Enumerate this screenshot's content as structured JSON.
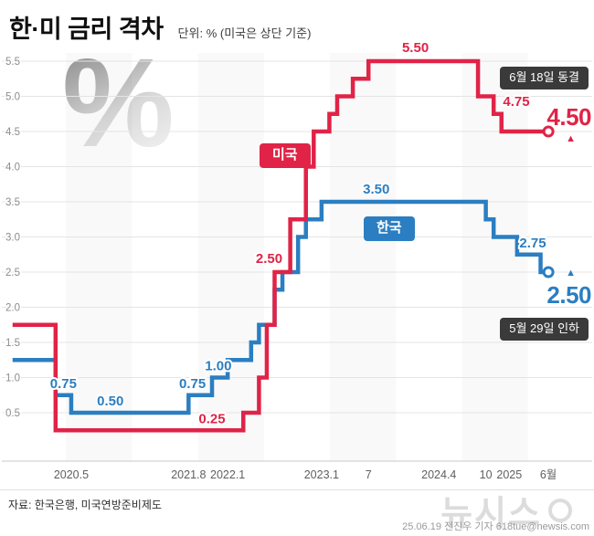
{
  "header": {
    "title": "한·미 금리 격차",
    "subtitle": "단위: % (미국은 상단 기준)"
  },
  "watermark": {
    "percent": "%",
    "brand": "뉴시스"
  },
  "icons": {
    "arrow_up": "▲"
  },
  "colors": {
    "us": "#e02347",
    "korea": "#2b7ec1",
    "event_badge_bg": "#3a3a3a",
    "grid": "#e4e4e4",
    "axis_label": "#8c8c8c"
  },
  "chart_data": {
    "type": "line",
    "step": true,
    "title": "한·미 금리 격차",
    "unit": "%",
    "note": "미국은 상단 기준",
    "ylim": [
      0.25,
      5.5
    ],
    "yticks": [
      5.5,
      5.0,
      4.5,
      4.0,
      3.5,
      3.0,
      2.5,
      2.0,
      1.5,
      1.0,
      0.5
    ],
    "x_unit": "months since 2020-01",
    "xticks": [
      {
        "t": 4,
        "label": "2020.5"
      },
      {
        "t": 19,
        "label": "2021.8"
      },
      {
        "t": 24,
        "label": "2022.1"
      },
      {
        "t": 36,
        "label": "2023.1"
      },
      {
        "t": 42,
        "label": "7"
      },
      {
        "t": 51,
        "label": "2024.4"
      },
      {
        "t": 57,
        "label": "10"
      },
      {
        "t": 60,
        "label": "2025"
      },
      {
        "t": 65,
        "label": "6월"
      }
    ],
    "series": [
      {
        "id": "korea",
        "name": "한국",
        "color": "#2b7ec1",
        "points": [
          [
            -3.5,
            1.25
          ],
          [
            2,
            0.75
          ],
          [
            4,
            0.5
          ],
          [
            19,
            0.75
          ],
          [
            22,
            1.0
          ],
          [
            24,
            1.25
          ],
          [
            27,
            1.5
          ],
          [
            28,
            1.75
          ],
          [
            30,
            2.25
          ],
          [
            31,
            2.5
          ],
          [
            33,
            3.0
          ],
          [
            34,
            3.25
          ],
          [
            36,
            3.5
          ],
          [
            57,
            3.25
          ],
          [
            58,
            3.0
          ],
          [
            61,
            2.75
          ],
          [
            64,
            2.5
          ],
          [
            65,
            2.5
          ]
        ]
      },
      {
        "id": "us",
        "name": "미국",
        "color": "#e02347",
        "points": [
          [
            -3.5,
            1.75
          ],
          [
            2,
            0.25
          ],
          [
            26,
            0.5
          ],
          [
            28,
            1.0
          ],
          [
            29,
            1.75
          ],
          [
            30,
            2.5
          ],
          [
            32,
            3.25
          ],
          [
            34,
            4.0
          ],
          [
            35,
            4.5
          ],
          [
            37,
            4.75
          ],
          [
            38,
            5.0
          ],
          [
            40,
            5.25
          ],
          [
            42,
            5.5
          ],
          [
            56,
            5.0
          ],
          [
            58,
            4.75
          ],
          [
            59,
            4.5
          ],
          [
            65,
            4.5
          ]
        ]
      }
    ],
    "point_labels": [
      {
        "series": "korea",
        "text": "0.75",
        "t": 3,
        "v": 0.75,
        "dy": -8
      },
      {
        "series": "korea",
        "text": "0.50",
        "t": 9,
        "v": 0.5,
        "dy": -8
      },
      {
        "series": "korea",
        "text": "0.75",
        "t": 19.5,
        "v": 0.75,
        "dy": -8
      },
      {
        "series": "korea",
        "text": "1.00",
        "t": 22.8,
        "v": 1.0,
        "dy": -8
      },
      {
        "series": "korea",
        "text": "3.50",
        "t": 43,
        "v": 3.5,
        "dy": -9
      },
      {
        "series": "korea",
        "text": "2.75",
        "t": 63,
        "v": 2.75,
        "dy": -8
      },
      {
        "series": "us",
        "text": "0.25",
        "t": 22,
        "v": 0.25,
        "dy": -8
      },
      {
        "series": "us",
        "text": "2.50",
        "t": 29.3,
        "v": 2.5,
        "dy": -10
      },
      {
        "series": "us",
        "text": "5.50",
        "t": 48,
        "v": 5.5,
        "dy": -10
      },
      {
        "series": "us",
        "text": "4.75",
        "t": 60.9,
        "v": 4.75,
        "dy": -9
      }
    ],
    "legend_badges": [
      {
        "series": "us",
        "label": "미국"
      },
      {
        "series": "korea",
        "label": "한국"
      }
    ],
    "end_markers": [
      {
        "series": "us",
        "t": 65,
        "v": 4.5
      },
      {
        "series": "korea",
        "t": 65,
        "v": 2.5
      }
    ],
    "legend_position": "on-chart",
    "grid": true
  },
  "annotations": {
    "us_event": "6월 18일 동결",
    "us_current": "4.50",
    "kr_current": "2.50",
    "kr_event": "5월 29일 인하"
  },
  "footer": {
    "source": "자료: 한국은행, 미국연방준비제도",
    "byline": "25.06.19 전진우 기자 618tue@newsis.com"
  }
}
